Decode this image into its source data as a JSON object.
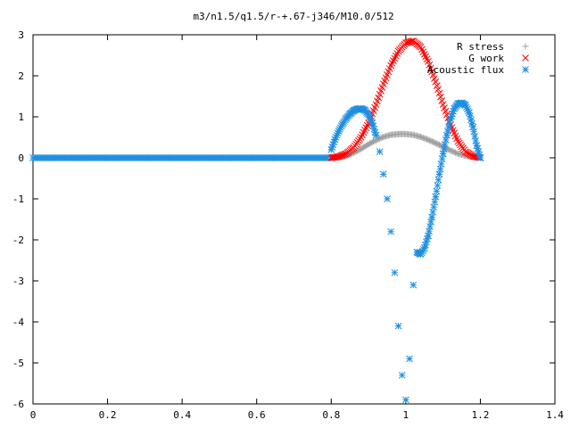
{
  "chart_data": {
    "type": "scatter",
    "title": "m3/n1.5/q1.5/r-+.67-j346/M10.0/512",
    "xlabel": "",
    "ylabel": "",
    "xlim": [
      0,
      1.4
    ],
    "ylim": [
      -6,
      3
    ],
    "x_ticks": [
      "0",
      "0.2",
      "0.4",
      "0.6",
      "0.8",
      "1",
      "1.2",
      "1.4"
    ],
    "y_ticks": [
      "-6",
      "-5",
      "-4",
      "-3",
      "-2",
      "-1",
      "0",
      "1",
      "2",
      "3"
    ],
    "x_tick_values": [
      0,
      0.2,
      0.4,
      0.6,
      0.8,
      1.0,
      1.2,
      1.4
    ],
    "y_tick_values": [
      -6,
      -5,
      -4,
      -3,
      -2,
      -1,
      0,
      1,
      2,
      3
    ],
    "legend_position": "top-right",
    "grid": false,
    "series": [
      {
        "name": "R stress",
        "marker": "plus",
        "color": "#a0a0a0",
        "x": [
          0.8,
          0.82,
          0.84,
          0.86,
          0.88,
          0.9,
          0.92,
          0.94,
          0.96,
          0.98,
          1.0,
          1.02,
          1.04,
          1.06,
          1.08,
          1.1,
          1.12,
          1.14,
          1.16,
          1.18,
          1.2
        ],
        "y": [
          0.0,
          0.01,
          0.05,
          0.12,
          0.22,
          0.33,
          0.43,
          0.51,
          0.56,
          0.58,
          0.58,
          0.56,
          0.51,
          0.44,
          0.36,
          0.27,
          0.18,
          0.1,
          0.05,
          0.02,
          0.0
        ]
      },
      {
        "name": "G work",
        "marker": "cross",
        "color": "#ff0000",
        "x": [
          0.8,
          0.82,
          0.84,
          0.86,
          0.88,
          0.9,
          0.92,
          0.94,
          0.96,
          0.98,
          1.0,
          1.02,
          1.04,
          1.06,
          1.08,
          1.1,
          1.12,
          1.14,
          1.16,
          1.18,
          1.2
        ],
        "y": [
          0.0,
          0.03,
          0.1,
          0.25,
          0.5,
          0.85,
          1.3,
          1.8,
          2.25,
          2.6,
          2.8,
          2.85,
          2.7,
          2.35,
          1.85,
          1.3,
          0.8,
          0.4,
          0.15,
          0.04,
          0.0
        ]
      },
      {
        "name": "Acoustic flux",
        "marker": "star",
        "color": "#1f8fe0",
        "x": [
          0.8,
          0.81,
          0.82,
          0.83,
          0.84,
          0.85,
          0.86,
          0.87,
          0.88,
          0.89,
          0.9,
          0.91,
          0.92,
          0.93,
          0.94,
          0.95,
          0.96,
          0.97,
          0.98,
          0.99,
          1.0,
          1.01,
          1.02,
          1.03,
          1.04,
          1.05,
          1.06,
          1.07,
          1.08,
          1.09,
          1.1,
          1.11,
          1.12,
          1.13,
          1.14,
          1.15,
          1.16,
          1.17,
          1.18,
          1.19,
          1.2
        ],
        "y": [
          0.2,
          0.45,
          0.65,
          0.82,
          0.96,
          1.07,
          1.15,
          1.19,
          1.2,
          1.16,
          1.05,
          0.85,
          0.55,
          0.15,
          -0.4,
          -1.0,
          -1.8,
          -2.8,
          -4.1,
          -5.3,
          -5.9,
          -4.9,
          -3.1,
          -2.3,
          -2.35,
          -2.2,
          -1.9,
          -1.45,
          -0.95,
          -0.4,
          0.1,
          0.55,
          0.95,
          1.2,
          1.32,
          1.34,
          1.28,
          1.1,
          0.75,
          0.3,
          0.0
        ]
      }
    ],
    "baseline": {
      "x_from": 0.0,
      "x_to": 0.8,
      "y": 0.0
    }
  }
}
